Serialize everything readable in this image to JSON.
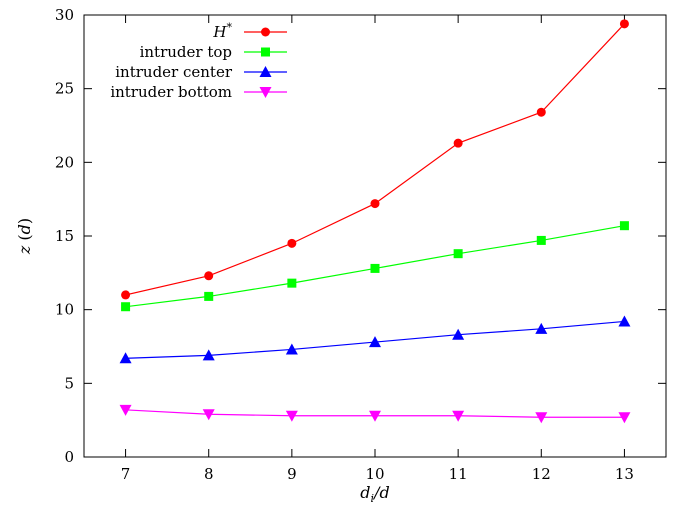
{
  "chart_data": {
    "type": "line",
    "x": [
      7,
      8,
      9,
      10,
      11,
      12,
      13
    ],
    "xlabel": "d_i/d",
    "ylabel": "z (d)",
    "xlim": [
      6.5,
      13.5
    ],
    "ylim": [
      0,
      30
    ],
    "xticks": [
      "7",
      "8",
      "9",
      "10",
      "11",
      "12",
      "13"
    ],
    "yticks": [
      "0",
      "5",
      "10",
      "15",
      "20",
      "25",
      "30"
    ],
    "grid": false,
    "legend_position": "top-left",
    "series": [
      {
        "name": "H*",
        "color": "#ff0000",
        "marker": "circle",
        "values": [
          11.0,
          12.3,
          14.5,
          17.2,
          21.3,
          23.4,
          29.4
        ]
      },
      {
        "name": "intruder top",
        "color": "#00ff00",
        "marker": "square",
        "values": [
          10.2,
          10.9,
          11.8,
          12.8,
          13.8,
          14.7,
          15.7
        ]
      },
      {
        "name": "intruder center",
        "color": "#0000ff",
        "marker": "triangle-up",
        "values": [
          6.7,
          6.9,
          7.3,
          7.8,
          8.3,
          8.7,
          9.2
        ]
      },
      {
        "name": "intruder bottom",
        "color": "#ff00ff",
        "marker": "triangle-down",
        "values": [
          3.2,
          2.9,
          2.8,
          2.8,
          2.8,
          2.7,
          2.7
        ]
      }
    ]
  }
}
